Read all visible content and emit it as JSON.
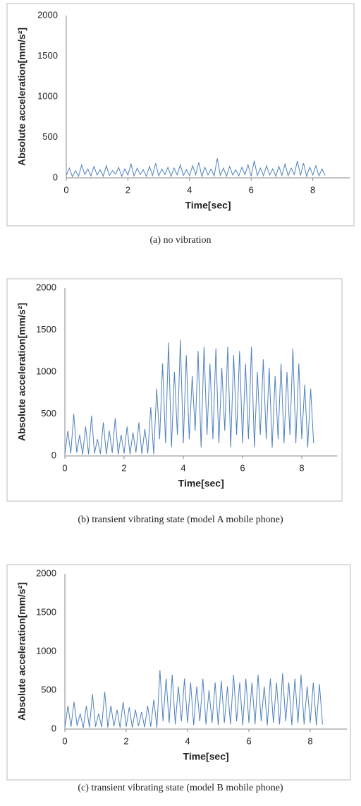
{
  "chart_data": [
    {
      "type": "line",
      "x_label": "Time[sec]",
      "y_label": "Absolute acceleration[mm/s²]",
      "caption": "(a) no vibration",
      "color": "#4f81bd",
      "grid": false,
      "xlim": [
        0,
        9.2
      ],
      "xticks": [
        0,
        2,
        4,
        6,
        8
      ],
      "ylim": [
        0,
        2000
      ],
      "yticks": [
        0,
        500,
        1000,
        1500,
        2000
      ],
      "x": [
        0,
        0.1,
        0.2,
        0.3,
        0.4,
        0.5,
        0.6,
        0.7,
        0.8,
        0.9,
        1,
        1.1,
        1.2,
        1.3,
        1.4,
        1.5,
        1.6,
        1.7,
        1.8,
        1.9,
        2,
        2.1,
        2.2,
        2.3,
        2.4,
        2.5,
        2.6,
        2.7,
        2.8,
        2.9,
        3,
        3.1,
        3.2,
        3.3,
        3.4,
        3.5,
        3.6,
        3.7,
        3.8,
        3.9,
        4,
        4.1,
        4.2,
        4.3,
        4.4,
        4.5,
        4.6,
        4.7,
        4.8,
        4.9,
        5,
        5.1,
        5.2,
        5.3,
        5.4,
        5.5,
        5.6,
        5.7,
        5.8,
        5.9,
        6,
        6.1,
        6.2,
        6.3,
        6.4,
        6.5,
        6.6,
        6.7,
        6.8,
        6.9,
        7,
        7.1,
        7.2,
        7.3,
        7.4,
        7.5,
        7.6,
        7.7,
        7.8,
        7.9,
        8,
        8.1,
        8.2,
        8.3,
        8.4
      ],
      "values": [
        30,
        120,
        15,
        90,
        20,
        160,
        40,
        110,
        25,
        140,
        35,
        100,
        20,
        150,
        30,
        90,
        45,
        130,
        20,
        110,
        35,
        170,
        25,
        120,
        40,
        100,
        20,
        140,
        30,
        180,
        25,
        110,
        40,
        130,
        20,
        120,
        35,
        160,
        30,
        100,
        25,
        150,
        40,
        190,
        20,
        130,
        35,
        110,
        25,
        240,
        30,
        120,
        20,
        140,
        35,
        100,
        25,
        130,
        40,
        160,
        20,
        210,
        30,
        120,
        25,
        150,
        35,
        110,
        20,
        140,
        30,
        170,
        25,
        120,
        40,
        210,
        30,
        180,
        20,
        130,
        35,
        150,
        25,
        110,
        30
      ]
    },
    {
      "type": "line",
      "x_label": "Time[sec]",
      "y_label": "Absolute acceleration[mm/s²]",
      "caption": "(b) transient vibrating state (model A mobile phone)",
      "color": "#4f81bd",
      "grid": false,
      "xlim": [
        0,
        9.2
      ],
      "xticks": [
        0,
        2,
        4,
        6,
        8
      ],
      "ylim": [
        0,
        2000
      ],
      "yticks": [
        0,
        500,
        1000,
        1500,
        2000
      ],
      "x": [
        0,
        0.1,
        0.2,
        0.3,
        0.4,
        0.5,
        0.6,
        0.7,
        0.8,
        0.9,
        1,
        1.1,
        1.2,
        1.3,
        1.4,
        1.5,
        1.6,
        1.7,
        1.8,
        1.9,
        2,
        2.1,
        2.2,
        2.3,
        2.4,
        2.5,
        2.6,
        2.7,
        2.8,
        2.9,
        3,
        3.1,
        3.2,
        3.3,
        3.4,
        3.5,
        3.6,
        3.7,
        3.8,
        3.9,
        4,
        4.1,
        4.2,
        4.3,
        4.4,
        4.5,
        4.6,
        4.7,
        4.8,
        4.9,
        5,
        5.1,
        5.2,
        5.3,
        5.4,
        5.5,
        5.6,
        5.7,
        5.8,
        5.9,
        6,
        6.1,
        6.2,
        6.3,
        6.4,
        6.5,
        6.6,
        6.7,
        6.8,
        6.9,
        7,
        7.1,
        7.2,
        7.3,
        7.4,
        7.5,
        7.6,
        7.7,
        7.8,
        7.9,
        8,
        8.1,
        8.2,
        8.3,
        8.4
      ],
      "values": [
        20,
        300,
        30,
        500,
        40,
        250,
        15,
        350,
        20,
        480,
        30,
        200,
        25,
        400,
        20,
        300,
        35,
        450,
        20,
        250,
        30,
        350,
        20,
        280,
        40,
        400,
        25,
        320,
        30,
        580,
        20,
        800,
        200,
        1100,
        150,
        1350,
        100,
        1000,
        250,
        1380,
        150,
        1200,
        200,
        950,
        300,
        1250,
        100,
        1300,
        250,
        1100,
        200,
        1280,
        150,
        1050,
        300,
        1300,
        100,
        1200,
        250,
        1250,
        150,
        1100,
        200,
        1300,
        100,
        1000,
        250,
        1150,
        200,
        1050,
        100,
        950,
        200,
        1100,
        150,
        1000,
        250,
        1280,
        150,
        1100,
        200,
        850,
        100,
        800,
        150
      ]
    },
    {
      "type": "line",
      "x_label": "Time[sec]",
      "y_label": "Absolute acceleration[mm/s²]",
      "caption": "(c) transient vibrating state (model B mobile phone)",
      "color": "#4f81bd",
      "grid": false,
      "xlim": [
        0,
        9.2
      ],
      "xticks": [
        0,
        2,
        4,
        6,
        8
      ],
      "ylim": [
        0,
        2000
      ],
      "yticks": [
        0,
        500,
        1000,
        1500,
        2000
      ],
      "x": [
        0,
        0.1,
        0.2,
        0.3,
        0.4,
        0.5,
        0.6,
        0.7,
        0.8,
        0.9,
        1,
        1.1,
        1.2,
        1.3,
        1.4,
        1.5,
        1.6,
        1.7,
        1.8,
        1.9,
        2,
        2.1,
        2.2,
        2.3,
        2.4,
        2.5,
        2.6,
        2.7,
        2.8,
        2.9,
        3,
        3.1,
        3.2,
        3.3,
        3.4,
        3.5,
        3.6,
        3.7,
        3.8,
        3.9,
        4,
        4.1,
        4.2,
        4.3,
        4.4,
        4.5,
        4.6,
        4.7,
        4.8,
        4.9,
        5,
        5.1,
        5.2,
        5.3,
        5.4,
        5.5,
        5.6,
        5.7,
        5.8,
        5.9,
        6,
        6.1,
        6.2,
        6.3,
        6.4,
        6.5,
        6.6,
        6.7,
        6.8,
        6.9,
        7,
        7.1,
        7.2,
        7.3,
        7.4,
        7.5,
        7.6,
        7.7,
        7.8,
        7.9,
        8,
        8.1,
        8.2,
        8.3,
        8.4
      ],
      "values": [
        20,
        300,
        30,
        350,
        40,
        200,
        15,
        300,
        20,
        450,
        30,
        200,
        25,
        480,
        20,
        300,
        35,
        250,
        20,
        350,
        30,
        280,
        20,
        250,
        40,
        220,
        25,
        300,
        30,
        380,
        20,
        760,
        100,
        650,
        80,
        700,
        60,
        550,
        100,
        650,
        80,
        600,
        50,
        550,
        100,
        650,
        60,
        500,
        80,
        600,
        50,
        620,
        80,
        550,
        60,
        700,
        100,
        600,
        50,
        650,
        80,
        600,
        60,
        700,
        100,
        550,
        50,
        650,
        80,
        600,
        60,
        720,
        100,
        600,
        50,
        650,
        80,
        700,
        60,
        550,
        80,
        600,
        50,
        580,
        60
      ]
    }
  ]
}
